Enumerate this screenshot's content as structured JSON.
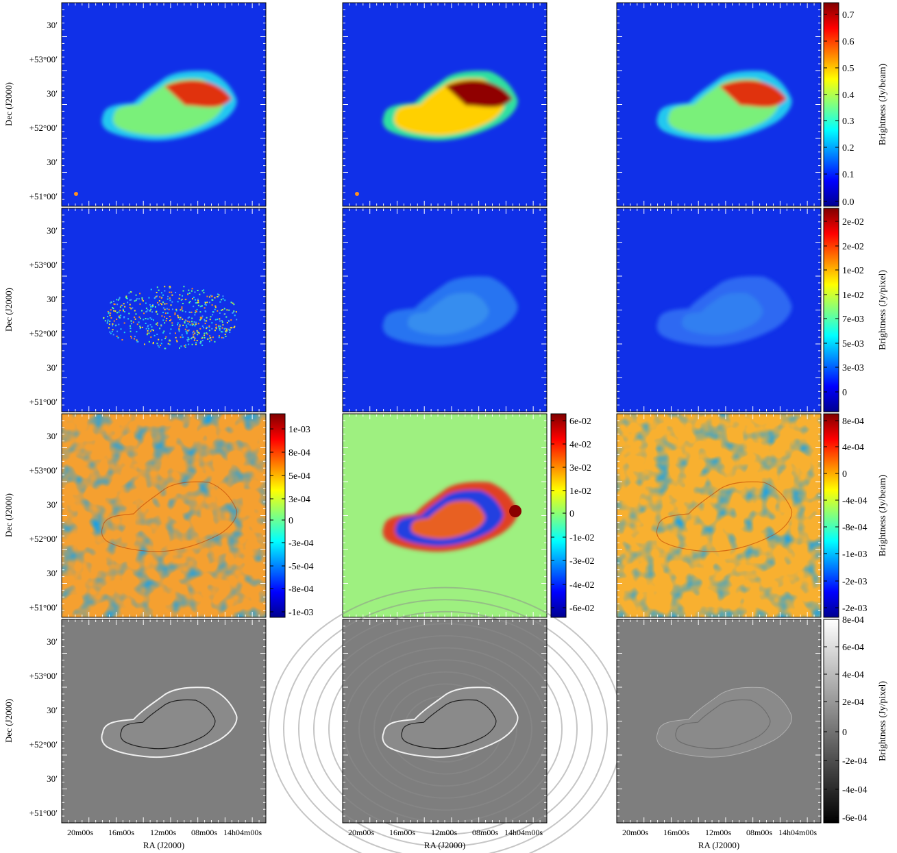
{
  "chart_data": {
    "type": "heatmap",
    "description_of_layout": "4 rows x 3 columns of sky images",
    "colormaps": {
      "rows_1_to_3": "jet",
      "row_4": "gray"
    },
    "axes": {
      "xlabel": "RA (J2000)",
      "ylabel": "Dec (J2000)",
      "x_ticks": [
        "20m00s",
        "16m00s",
        "12m00s",
        "08m00s",
        "14h04m00s"
      ],
      "y_ticks": [
        "30′",
        "+53°00′",
        "30′",
        "+52°00′",
        "30′",
        "+51°00′"
      ]
    },
    "colorbars": [
      {
        "row": 1,
        "column": 3,
        "label": "Brightness (Jy/beam)",
        "ticks": [
          "0.7",
          "0.6",
          "0.5",
          "0.4",
          "0.3",
          "0.2",
          "0.1",
          "0.0"
        ],
        "range": [
          -0.05,
          0.75
        ],
        "colormap": "jet"
      },
      {
        "row": 2,
        "column": 3,
        "label": "Brightness (Jy/pixel)",
        "ticks": [
          "2e-02",
          "2e-02",
          "1e-02",
          "1e-02",
          "7e-03",
          "5e-03",
          "3e-03",
          "0"
        ],
        "colormap": "jet"
      },
      {
        "row": 3,
        "column": 1,
        "label": "",
        "ticks": [
          "1e-03",
          "8e-04",
          "5e-04",
          "3e-04",
          "0",
          "-3e-04",
          "-5e-04",
          "-8e-04",
          "-1e-03"
        ],
        "colormap": "jet"
      },
      {
        "row": 3,
        "column": 2,
        "label": "",
        "ticks": [
          "6e-02",
          "4e-02",
          "3e-02",
          "1e-02",
          "0",
          "-1e-02",
          "-3e-02",
          "-4e-02",
          "-6e-02"
        ],
        "colormap": "jet"
      },
      {
        "row": 3,
        "column": 3,
        "label": "Brightness (Jy/beam)",
        "ticks": [
          "8e-04",
          "4e-04",
          "0",
          "-4e-04",
          "-8e-04",
          "-1e-03",
          "-2e-03",
          "-2e-03"
        ],
        "colormap": "jet"
      },
      {
        "row": 4,
        "column": 3,
        "label": "Brightness (Jy/pixel)",
        "ticks": [
          "8e-04",
          "6e-04",
          "4e-04",
          "2e-04",
          "0",
          "-2e-04",
          "-4e-04",
          "-6e-04"
        ],
        "range": [
          -0.0006,
          0.0008
        ],
        "colormap": "gray"
      }
    ],
    "panels": [
      {
        "row": 1,
        "column": 1,
        "content": "restored image",
        "beam_marker": true
      },
      {
        "row": 1,
        "column": 2,
        "content": "restored image, higher contrast",
        "beam_marker": true
      },
      {
        "row": 1,
        "column": 3,
        "content": "restored image",
        "beam_marker": false
      },
      {
        "row": 2,
        "column": 1,
        "content": "speckled model"
      },
      {
        "row": 2,
        "column": 2,
        "content": "smooth model"
      },
      {
        "row": 2,
        "column": 3,
        "content": "smooth model"
      },
      {
        "row": 3,
        "column": 1,
        "content": "residual"
      },
      {
        "row": 3,
        "column": 2,
        "content": "residual with strong structure"
      },
      {
        "row": 3,
        "column": 3,
        "content": "residual"
      },
      {
        "row": 4,
        "column": 1,
        "content": "gray-scale image"
      },
      {
        "row": 4,
        "column": 2,
        "content": "gray-scale image with ripples"
      },
      {
        "row": 4,
        "column": 3,
        "content": "gray-scale image, faint"
      }
    ]
  }
}
